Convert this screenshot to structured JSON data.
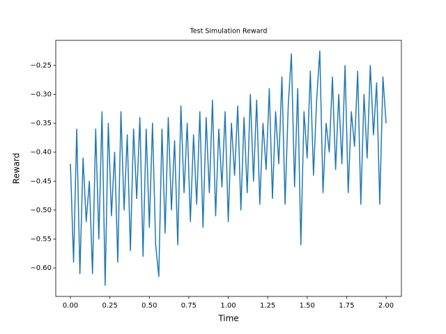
{
  "chart_data": {
    "type": "line",
    "title": "Test Simulation Reward",
    "x_label": "Time",
    "y_label": "Reward",
    "x": [
      0.0,
      0.02,
      0.04,
      0.06,
      0.08,
      0.1,
      0.12,
      0.14,
      0.16,
      0.18,
      0.2,
      0.22,
      0.24,
      0.26,
      0.28,
      0.3,
      0.32,
      0.34,
      0.36,
      0.38,
      0.4,
      0.42,
      0.44,
      0.46,
      0.48,
      0.5,
      0.52,
      0.54,
      0.56,
      0.58,
      0.6,
      0.62,
      0.64,
      0.66,
      0.68,
      0.7,
      0.72,
      0.74,
      0.76,
      0.78,
      0.8,
      0.82,
      0.84,
      0.86,
      0.88,
      0.9,
      0.92,
      0.94,
      0.96,
      0.98,
      1.0,
      1.02,
      1.04,
      1.06,
      1.08,
      1.1,
      1.12,
      1.14,
      1.16,
      1.18,
      1.2,
      1.22,
      1.24,
      1.26,
      1.28,
      1.3,
      1.32,
      1.34,
      1.36,
      1.38,
      1.4,
      1.42,
      1.44,
      1.46,
      1.48,
      1.5,
      1.52,
      1.54,
      1.56,
      1.58,
      1.6,
      1.62,
      1.64,
      1.66,
      1.68,
      1.7,
      1.72,
      1.74,
      1.76,
      1.78,
      1.8,
      1.82,
      1.84,
      1.86,
      1.88,
      1.9,
      1.92,
      1.94,
      1.96,
      1.98,
      2.0
    ],
    "series": [
      {
        "name": "Reward",
        "color": "#1f77b4",
        "values": [
          -0.42,
          -0.59,
          -0.36,
          -0.61,
          -0.41,
          -0.52,
          -0.45,
          -0.61,
          -0.36,
          -0.55,
          -0.33,
          -0.63,
          -0.35,
          -0.51,
          -0.4,
          -0.59,
          -0.33,
          -0.5,
          -0.37,
          -0.57,
          -0.36,
          -0.48,
          -0.34,
          -0.58,
          -0.36,
          -0.53,
          -0.35,
          -0.56,
          -0.615,
          -0.36,
          -0.54,
          -0.34,
          -0.5,
          -0.38,
          -0.56,
          -0.32,
          -0.47,
          -0.35,
          -0.52,
          -0.37,
          -0.49,
          -0.33,
          -0.53,
          -0.34,
          -0.47,
          -0.31,
          -0.51,
          -0.36,
          -0.46,
          -0.33,
          -0.52,
          -0.35,
          -0.44,
          -0.32,
          -0.5,
          -0.34,
          -0.47,
          -0.3,
          -0.45,
          -0.31,
          -0.49,
          -0.35,
          -0.43,
          -0.29,
          -0.48,
          -0.33,
          -0.42,
          -0.27,
          -0.49,
          -0.32,
          -0.23,
          -0.46,
          -0.29,
          -0.56,
          -0.33,
          -0.41,
          -0.26,
          -0.44,
          -0.31,
          -0.225,
          -0.47,
          -0.35,
          -0.4,
          -0.27,
          -0.43,
          -0.3,
          -0.42,
          -0.25,
          -0.47,
          -0.33,
          -0.39,
          -0.26,
          -0.49,
          -0.3,
          -0.41,
          -0.25,
          -0.37,
          -0.28,
          -0.49,
          -0.27,
          -0.35
        ]
      }
    ],
    "xlim": [
      -0.093,
      2.097
    ],
    "ylim": [
      -0.6493,
      -0.2067
    ],
    "xticks": [
      {
        "value": 0,
        "label": "0.00"
      },
      {
        "value": 0.25,
        "label": "0.25"
      },
      {
        "value": 0.5,
        "label": "0.50"
      },
      {
        "value": 0.75,
        "label": "0.75"
      },
      {
        "value": 1,
        "label": "1.00"
      },
      {
        "value": 1.25,
        "label": "1.25"
      },
      {
        "value": 1.5,
        "label": "1.50"
      },
      {
        "value": 1.75,
        "label": "1.75"
      },
      {
        "value": 2,
        "label": "2.00"
      }
    ],
    "yticks": [
      {
        "value": -0.6,
        "label": "−0.60"
      },
      {
        "value": -0.55,
        "label": "−0.55"
      },
      {
        "value": -0.5,
        "label": "−0.50"
      },
      {
        "value": -0.45,
        "label": "−0.45"
      },
      {
        "value": -0.4,
        "label": "−0.40"
      },
      {
        "value": -0.35,
        "label": "−0.35"
      },
      {
        "value": -0.3,
        "label": "−0.30"
      },
      {
        "value": -0.25,
        "label": "−0.25"
      }
    ],
    "grid": false
  }
}
